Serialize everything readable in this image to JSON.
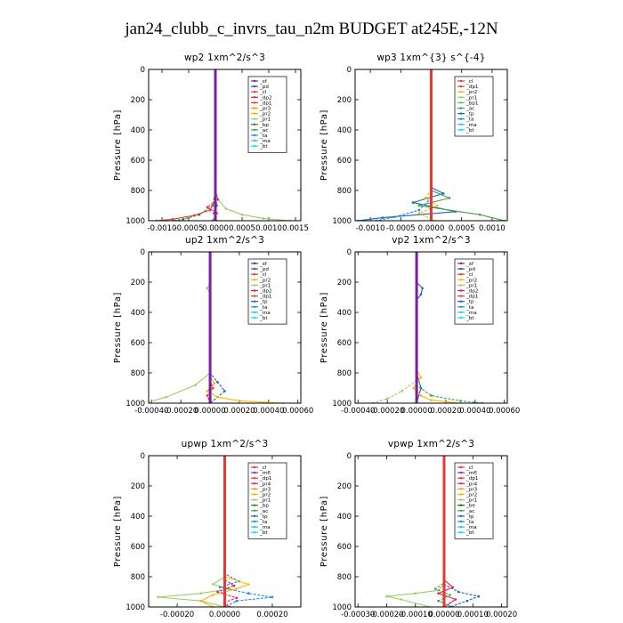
{
  "title": "jan24_clubb_c_invrs_tau_n2m  BUDGET at245E,-12N",
  "colors": {
    "sf": "#7b1fa2",
    "pd": "#3949ab",
    "cl": "#e53935",
    "dp2": "#d81b60",
    "dp1": "#e53935",
    "pr3": "#ff9800",
    "pr2": "#ffb300",
    "pr1": "#9ccc65",
    "bp": "#2e7d32",
    "ac": "#43a047",
    "ta": "#1e88e5",
    "ma": "#26c6da",
    "bt": "#00e5ff",
    "tp": "#1565c0",
    "mfl": "#8e24aa",
    "pr4": "#e91e63",
    "bp1": "#66bb6a",
    "be": "#1b5e20"
  },
  "chart_data": [
    {
      "type": "line",
      "title": "wp2  1xm^2/s^3",
      "ylabel": "Pressure [hPa]",
      "xlim": [
        -0.00125,
        0.0016
      ],
      "ylim": [
        1000,
        0
      ],
      "xticks": [
        -0.001,
        -0.0005,
        0.0,
        0.0005,
        0.001,
        0.0015
      ],
      "xtick_labels": [
        "-0.0010",
        "-0.0005",
        "0.0000",
        "0.0005",
        "0.0010",
        "0.0015"
      ],
      "yticks": [
        0,
        200,
        400,
        600,
        800,
        1000
      ],
      "ytick_labels": [
        "0",
        "200",
        "400",
        "600",
        "800",
        "1000"
      ],
      "legend": [
        "_sf",
        "_pd",
        "_cl",
        "_dp2",
        "_dp1",
        "_pr3",
        "_pr2",
        "_pr1",
        "_bp",
        "_ac",
        "_ta",
        "_ma",
        "_bt"
      ],
      "legend_keys": [
        "sf",
        "pd",
        "cl",
        "dp2",
        "dp1",
        "pr3",
        "pr2",
        "pr1",
        "bp",
        "ac",
        "ta",
        "ma",
        "bt"
      ],
      "legend_position": "top-right",
      "series": [
        {
          "name": "_pr1",
          "key": "pr1",
          "x": [
            0,
            0,
            0,
            5e-05,
            0.0002,
            0.0005,
            0.0009,
            0.0014
          ],
          "y": [
            0,
            600,
            800,
            860,
            920,
            960,
            985,
            1000
          ]
        },
        {
          "name": "_bp",
          "key": "bp",
          "x": [
            0,
            0,
            -5e-05,
            -0.0003,
            -0.0006,
            -0.0008
          ],
          "y": [
            0,
            800,
            900,
            960,
            990,
            1000
          ]
        },
        {
          "name": "_cl",
          "key": "cl",
          "x": [
            0,
            0,
            -0.0001,
            -0.0004,
            -0.0008,
            -0.0011
          ],
          "y": [
            0,
            860,
            930,
            965,
            990,
            1000
          ]
        },
        {
          "name": "_dp1",
          "key": "dp1",
          "x": [
            0,
            0,
            5e-05,
            -0.00015,
            3e-05,
            -5e-05
          ],
          "y": [
            0,
            800,
            860,
            910,
            950,
            1000
          ]
        },
        {
          "name": "_ta",
          "key": "ta",
          "x": [
            0,
            0,
            3e-05,
            -3e-05,
            2e-05
          ],
          "y": [
            0,
            850,
            900,
            950,
            1000
          ]
        },
        {
          "name": "_sf",
          "key": "sf",
          "x": [
            0,
            0,
            0
          ],
          "y": [
            0,
            500,
            1000
          ]
        }
      ]
    },
    {
      "type": "line",
      "title": "wp3  1xm^{3} s^{-4}",
      "ylabel": "Pressure [hPa]",
      "xlim": [
        -0.00125,
        0.00125
      ],
      "ylim": [
        1000,
        0
      ],
      "xticks": [
        -0.001,
        -0.0005,
        0.0,
        0.0005,
        0.001
      ],
      "xtick_labels": [
        "-0.0010",
        "-0.0005",
        "0.0000",
        "0.0005",
        "0.0010"
      ],
      "yticks": [
        0,
        200,
        400,
        600,
        800,
        1000
      ],
      "ytick_labels": [
        "0",
        "200",
        "400",
        "600",
        "800",
        "1000"
      ],
      "legend": [
        "_cl",
        "_dp1",
        "_pr2",
        "_pr1",
        "_bp1",
        "_ac",
        "_tp",
        "_ta",
        "_ma",
        "_bt"
      ],
      "legend_keys": [
        "cl",
        "dp1",
        "pr2",
        "pr1",
        "bp1",
        "ac",
        "tp",
        "ta",
        "ma",
        "bt"
      ],
      "legend_position": "top-right",
      "series": [
        {
          "name": "_tp",
          "key": "tp",
          "x": [
            0,
            0,
            0.0002,
            -0.0003,
            0.0004,
            -0.0008,
            -0.0012
          ],
          "y": [
            0,
            780,
            820,
            880,
            940,
            980,
            1000
          ]
        },
        {
          "name": "_pr2",
          "key": "pr2",
          "x": [
            0,
            0,
            -0.0001,
            0.0001,
            -0.0002,
            5e-05
          ],
          "y": [
            0,
            800,
            850,
            900,
            950,
            1000
          ]
        },
        {
          "name": "_ac",
          "key": "ac",
          "x": [
            0,
            0,
            0.0003,
            -0.0002,
            0.0008,
            0.0012
          ],
          "y": [
            0,
            800,
            850,
            900,
            960,
            1000
          ]
        },
        {
          "name": "_ta",
          "key": "ta",
          "x": [
            0,
            0,
            -0.0002,
            -0.0006,
            -0.0009
          ],
          "y": [
            0,
            850,
            930,
            975,
            1000
          ]
        },
        {
          "name": "_cl",
          "key": "cl",
          "x": [
            0,
            0,
            0
          ],
          "y": [
            0,
            500,
            1000
          ]
        }
      ]
    },
    {
      "type": "line",
      "title": "up2  1xm^2/s^3",
      "ylabel": "Pressure [hPa]",
      "xlim": [
        -0.00042,
        0.00062
      ],
      "ylim": [
        1000,
        0
      ],
      "xticks": [
        -0.0004,
        -0.0002,
        0.0,
        0.0002,
        0.0004,
        0.0006
      ],
      "xtick_labels": [
        "-0.00040",
        "-0.00020",
        "0.00000",
        "0.00020",
        "0.00040",
        "0.00060"
      ],
      "yticks": [
        0,
        200,
        400,
        600,
        800,
        1000
      ],
      "ytick_labels": [
        "0",
        "200",
        "400",
        "600",
        "800",
        "1000"
      ],
      "legend": [
        "_sf",
        "_pd",
        "_cl",
        "_pr2",
        "_pr1",
        "_dp2",
        "_dp1",
        "_tp",
        "_ta",
        "_ma",
        "_bt"
      ],
      "legend_keys": [
        "sf",
        "pd",
        "cl",
        "pr2",
        "pr1",
        "dp2",
        "dp1",
        "tp",
        "ta",
        "ma",
        "bt"
      ],
      "legend_position": "top-right",
      "series": [
        {
          "name": "_pr1",
          "key": "pr1",
          "x": [
            0,
            0,
            -2e-05,
            0,
            0,
            -0.0001,
            -0.0003,
            -0.00045
          ],
          "y": [
            0,
            200,
            240,
            280,
            800,
            880,
            960,
            1000
          ]
        },
        {
          "name": "_tp",
          "key": "tp",
          "x": [
            0,
            0,
            5e-05,
            0.0001,
            5e-05,
            0
          ],
          "y": [
            0,
            800,
            860,
            920,
            960,
            1000
          ]
        },
        {
          "name": "_pr2",
          "key": "pr2",
          "x": [
            0,
            0,
            3e-05,
            -2e-05,
            5e-05,
            0.0002,
            0.0005
          ],
          "y": [
            0,
            820,
            870,
            920,
            960,
            985,
            1000
          ]
        },
        {
          "name": "_dp1",
          "key": "dp1",
          "x": [
            0,
            0,
            2e-05,
            -2e-05,
            0
          ],
          "y": [
            0,
            850,
            900,
            950,
            1000
          ]
        },
        {
          "name": "_sf",
          "key": "sf",
          "x": [
            0,
            0,
            0
          ],
          "y": [
            0,
            500,
            1000
          ]
        }
      ]
    },
    {
      "type": "line",
      "title": "vp2  1xm^2/s^3",
      "ylabel": "Pressure [hPa]",
      "xlim": [
        -0.00042,
        0.00062
      ],
      "ylim": [
        1000,
        0
      ],
      "xticks": [
        -0.0004,
        -0.0002,
        0.0,
        0.0002,
        0.0004,
        0.0006
      ],
      "xtick_labels": [
        "-0.00040",
        "-0.00020",
        "0.00000",
        "0.00020",
        "0.00040",
        "0.00060"
      ],
      "yticks": [
        0,
        200,
        400,
        600,
        800,
        1000
      ],
      "ytick_labels": [
        "0",
        "200",
        "400",
        "600",
        "800",
        "1000"
      ],
      "legend": [
        "_sf",
        "_pd",
        "_cl",
        "_pr2",
        "_pr1",
        "_dp2",
        "_dp1",
        "_tp",
        "_ta",
        "_ma",
        "_bt"
      ],
      "legend_keys": [
        "sf",
        "pd",
        "cl",
        "pr2",
        "pr1",
        "dp2",
        "dp1",
        "tp",
        "ta",
        "ma",
        "bt"
      ],
      "legend_position": "top-right",
      "series": [
        {
          "name": "_tp",
          "key": "tp",
          "x": [
            0,
            0,
            4e-05,
            3e-05,
            0,
            0,
            3e-05,
            0
          ],
          "y": [
            0,
            200,
            240,
            280,
            320,
            800,
            900,
            1000
          ]
        },
        {
          "name": "_pr1",
          "key": "pr1",
          "x": [
            0,
            0,
            -0.0001,
            -0.0002,
            -0.0003
          ],
          "y": [
            0,
            850,
            920,
            970,
            1000
          ]
        },
        {
          "name": "_pr2",
          "key": "pr2",
          "x": [
            0,
            0,
            3e-05,
            -2e-05,
            3e-05,
            0.0001,
            0.0003
          ],
          "y": [
            0,
            780,
            830,
            900,
            950,
            980,
            1000
          ]
        },
        {
          "name": "_ac",
          "key": "ac",
          "x": [
            0,
            0,
            0.0001,
            0.0003,
            0.00045
          ],
          "y": [
            0,
            880,
            950,
            985,
            1000
          ]
        },
        {
          "name": "_sf",
          "key": "sf",
          "x": [
            0,
            0,
            0
          ],
          "y": [
            0,
            500,
            1000
          ]
        }
      ]
    },
    {
      "type": "line",
      "title": "upwp  1xm^2/s^3",
      "ylabel": "Pressure [hPa]",
      "xlim": [
        -0.00032,
        0.00032
      ],
      "ylim": [
        1000,
        0
      ],
      "xticks": [
        -0.0002,
        0.0,
        0.0002
      ],
      "xtick_labels": [
        "-0.00020",
        "0.00000",
        "0.00020"
      ],
      "yticks": [
        0,
        200,
        400,
        600,
        800,
        1000
      ],
      "ytick_labels": [
        "0",
        "200",
        "400",
        "600",
        "800",
        "1000"
      ],
      "legend": [
        "_cl",
        "_mfl",
        "_dp1",
        "_pr4",
        "_pr3",
        "_pr2",
        "_pr1",
        "_bp",
        "_ac",
        "_tp",
        "_ta",
        "_ma",
        "_bt"
      ],
      "legend_keys": [
        "cl",
        "mfl",
        "dp1",
        "pr4",
        "pr3",
        "pr2",
        "pr1",
        "bp",
        "ac",
        "tp",
        "ta",
        "ma",
        "bt"
      ],
      "legend_position": "top-right",
      "series": [
        {
          "name": "_pr1",
          "key": "pr1",
          "x": [
            0,
            0,
            -5e-05,
            2e-05,
            -0.0001,
            -0.00028,
            -0.0001,
            0
          ],
          "y": [
            0,
            800,
            850,
            880,
            910,
            935,
            960,
            1000
          ]
        },
        {
          "name": "_ta",
          "key": "ta",
          "x": [
            0,
            0,
            6e-05,
            -2e-05,
            0.0001,
            0.0002,
            5e-05,
            0
          ],
          "y": [
            0,
            780,
            830,
            870,
            910,
            935,
            960,
            1000
          ]
        },
        {
          "name": "_pr2",
          "key": "pr2",
          "x": [
            0,
            0,
            0.0001,
            5e-05,
            -5e-05,
            -0.0001,
            -5e-05
          ],
          "y": [
            0,
            800,
            850,
            880,
            920,
            960,
            1000
          ]
        },
        {
          "name": "_pr4",
          "key": "pr4",
          "x": [
            0,
            0,
            4e-05,
            -3e-05,
            5e-05,
            0,
            2e-05
          ],
          "y": [
            0,
            820,
            860,
            900,
            940,
            970,
            1000
          ]
        },
        {
          "name": "_cl",
          "key": "cl",
          "x": [
            0,
            0,
            0
          ],
          "y": [
            0,
            500,
            1000
          ]
        }
      ]
    },
    {
      "type": "line",
      "title": "vpwp  1xm^2/s^3",
      "ylabel": "Pressure [hPa]",
      "xlim": [
        -0.00031,
        0.00022
      ],
      "ylim": [
        1000,
        0
      ],
      "xticks": [
        -0.0003,
        -0.0002,
        -0.0001,
        0.0,
        0.0001,
        0.0002
      ],
      "xtick_labels": [
        "-0.00030",
        "-0.00020",
        "-0.00010",
        "0.00000",
        "0.00010",
        "0.00020"
      ],
      "yticks": [
        0,
        200,
        400,
        600,
        800,
        1000
      ],
      "ytick_labels": [
        "0",
        "200",
        "400",
        "600",
        "800",
        "1000"
      ],
      "legend": [
        "_cl",
        "_mfl",
        "_dp1",
        "_pr4",
        "_pr3",
        "_pr2",
        "_pr1",
        "_be",
        "_ac",
        "_tp",
        "_ta",
        "_ma",
        "_bt"
      ],
      "legend_keys": [
        "cl",
        "mfl",
        "dp1",
        "pr4",
        "pr3",
        "pr2",
        "pr1",
        "be",
        "ac",
        "tp",
        "ta",
        "ma",
        "bt"
      ],
      "legend_position": "top-right",
      "series": [
        {
          "name": "_pr1",
          "key": "pr1",
          "x": [
            0,
            0,
            -2e-05,
            -0.0001,
            -0.0002,
            -0.00015,
            -5e-05
          ],
          "y": [
            0,
            850,
            890,
            910,
            930,
            950,
            1000
          ]
        },
        {
          "name": "_tp",
          "key": "tp",
          "x": [
            0,
            0,
            5e-05,
            0.00012,
            8e-05,
            2e-05
          ],
          "y": [
            0,
            850,
            900,
            930,
            960,
            1000
          ]
        },
        {
          "name": "_pr4",
          "key": "pr4",
          "x": [
            0,
            0,
            3e-05,
            -2e-05,
            4e-05,
            0
          ],
          "y": [
            0,
            820,
            870,
            910,
            950,
            1000
          ]
        },
        {
          "name": "_ac",
          "key": "ac",
          "x": [
            0,
            0,
            -3e-05,
            2e-05,
            -2e-05,
            3e-05
          ],
          "y": [
            0,
            840,
            880,
            920,
            960,
            1000
          ]
        },
        {
          "name": "_cl",
          "key": "cl",
          "x": [
            0,
            0,
            0
          ],
          "y": [
            0,
            500,
            1000
          ]
        }
      ]
    }
  ]
}
